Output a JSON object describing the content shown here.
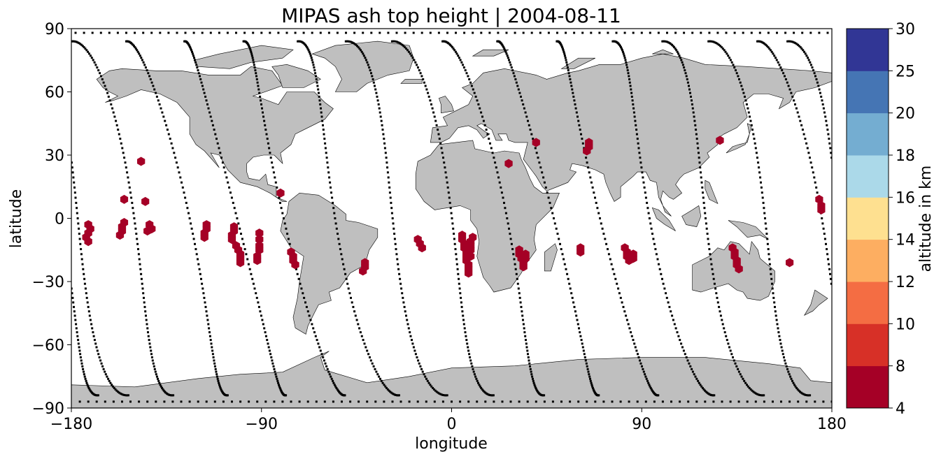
{
  "map": {
    "title": "MIPAS ash top height | 2004-08-11",
    "xlabel": "longitude",
    "ylabel": "latitude",
    "xticks": [
      {
        "value": -180,
        "label": "−180"
      },
      {
        "value": -90,
        "label": "−90"
      },
      {
        "value": 0,
        "label": "0"
      },
      {
        "value": 90,
        "label": "90"
      },
      {
        "value": 180,
        "label": "180"
      }
    ],
    "yticks": [
      {
        "value": 90,
        "label": "90"
      },
      {
        "value": 60,
        "label": "60"
      },
      {
        "value": 30,
        "label": "30"
      },
      {
        "value": 0,
        "label": "0"
      },
      {
        "value": -30,
        "label": "−30"
      },
      {
        "value": -60,
        "label": "−60"
      },
      {
        "value": -90,
        "label": "−90"
      }
    ],
    "xlim": [
      -180,
      180
    ],
    "ylim": [
      -90,
      90
    ],
    "land_color": "#bfbfbf",
    "orbit_color": "#000000",
    "ash_color": "#a50026"
  },
  "colorbar": {
    "label": "altitude in km",
    "levels": [
      4,
      8,
      10,
      12,
      14,
      16,
      18,
      20,
      25,
      30
    ],
    "tick_labels": [
      "4",
      "8",
      "10",
      "12",
      "14",
      "16",
      "18",
      "20",
      "25",
      "30"
    ],
    "colors": [
      "#a50026",
      "#d73027",
      "#f46d43",
      "#fdae61",
      "#fee090",
      "#ffffbf",
      "#e0f3f8",
      "#abd9e9",
      "#74add1",
      "#4575b4",
      "#313695"
    ]
  },
  "chart_data": {
    "type": "scatter",
    "title": "MIPAS ash top height | 2004-08-11",
    "xlabel": "longitude",
    "ylabel": "latitude",
    "xlim": [
      -180,
      180
    ],
    "ylim": [
      -90,
      90
    ],
    "orbit_nodes": [
      -177,
      -153,
      -127,
      -102,
      -77,
      -52,
      -27,
      -2,
      23,
      47,
      72,
      97,
      122,
      147,
      172
    ],
    "ash_detections": [
      {
        "lon": -172,
        "lat": -3
      },
      {
        "lon": -171,
        "lat": -5
      },
      {
        "lon": -172,
        "lat": -7
      },
      {
        "lon": -173,
        "lat": -9
      },
      {
        "lon": -172,
        "lat": -11
      },
      {
        "lon": -155,
        "lat": 9
      },
      {
        "lon": -155,
        "lat": -2
      },
      {
        "lon": -156,
        "lat": -4
      },
      {
        "lon": -156,
        "lat": -6
      },
      {
        "lon": -157,
        "lat": -8
      },
      {
        "lon": -147,
        "lat": 27
      },
      {
        "lon": -145,
        "lat": 8
      },
      {
        "lon": -143,
        "lat": -3
      },
      {
        "lon": -142,
        "lat": -5
      },
      {
        "lon": -144,
        "lat": -6
      },
      {
        "lon": -116,
        "lat": -3
      },
      {
        "lon": -116,
        "lat": -5
      },
      {
        "lon": -117,
        "lat": -7
      },
      {
        "lon": -117,
        "lat": -9
      },
      {
        "lon": -103,
        "lat": -4
      },
      {
        "lon": -103,
        "lat": -6
      },
      {
        "lon": -104,
        "lat": -8
      },
      {
        "lon": -104,
        "lat": -10
      },
      {
        "lon": -102,
        "lat": -13
      },
      {
        "lon": -101,
        "lat": -15
      },
      {
        "lon": -100,
        "lat": -17
      },
      {
        "lon": -100,
        "lat": -19
      },
      {
        "lon": -100,
        "lat": -21
      },
      {
        "lon": -91,
        "lat": -7
      },
      {
        "lon": -91,
        "lat": -10
      },
      {
        "lon": -91,
        "lat": -13
      },
      {
        "lon": -91,
        "lat": -15
      },
      {
        "lon": -92,
        "lat": -18
      },
      {
        "lon": -92,
        "lat": -20
      },
      {
        "lon": -81,
        "lat": 12
      },
      {
        "lon": -76,
        "lat": -16
      },
      {
        "lon": -75,
        "lat": -18
      },
      {
        "lon": -75,
        "lat": -20
      },
      {
        "lon": -74,
        "lat": -22
      },
      {
        "lon": -41,
        "lat": -21
      },
      {
        "lon": -41,
        "lat": -23
      },
      {
        "lon": -42,
        "lat": -25
      },
      {
        "lon": -16,
        "lat": -10
      },
      {
        "lon": -15,
        "lat": -12
      },
      {
        "lon": -14,
        "lat": -14
      },
      {
        "lon": 5,
        "lat": -8
      },
      {
        "lon": 5,
        "lat": -10
      },
      {
        "lon": 6,
        "lat": -12
      },
      {
        "lon": 6,
        "lat": -14
      },
      {
        "lon": 7,
        "lat": -16
      },
      {
        "lon": 7,
        "lat": -18
      },
      {
        "lon": 7,
        "lat": -20
      },
      {
        "lon": 8,
        "lat": -22
      },
      {
        "lon": 8,
        "lat": -24
      },
      {
        "lon": 8,
        "lat": -26
      },
      {
        "lon": 10,
        "lat": -9
      },
      {
        "lon": 9,
        "lat": -11
      },
      {
        "lon": 9,
        "lat": -13
      },
      {
        "lon": 9,
        "lat": -15
      },
      {
        "lon": 9,
        "lat": -18
      },
      {
        "lon": 27,
        "lat": 26
      },
      {
        "lon": 32,
        "lat": -15
      },
      {
        "lon": 32,
        "lat": -17
      },
      {
        "lon": 33,
        "lat": -19
      },
      {
        "lon": 35,
        "lat": -17
      },
      {
        "lon": 35,
        "lat": -19
      },
      {
        "lon": 34,
        "lat": -21
      },
      {
        "lon": 34,
        "lat": -23
      },
      {
        "lon": 40,
        "lat": 36
      },
      {
        "lon": 65,
        "lat": 36
      },
      {
        "lon": 65,
        "lat": 34
      },
      {
        "lon": 64,
        "lat": 32
      },
      {
        "lon": 61,
        "lat": -14
      },
      {
        "lon": 61,
        "lat": -16
      },
      {
        "lon": 82,
        "lat": -14
      },
      {
        "lon": 83,
        "lat": -16
      },
      {
        "lon": 83,
        "lat": -18
      },
      {
        "lon": 84,
        "lat": -20
      },
      {
        "lon": 86,
        "lat": -17
      },
      {
        "lon": 86,
        "lat": -19
      },
      {
        "lon": 127,
        "lat": 37
      },
      {
        "lon": 133,
        "lat": -14
      },
      {
        "lon": 134,
        "lat": -16
      },
      {
        "lon": 134,
        "lat": -18
      },
      {
        "lon": 135,
        "lat": -20
      },
      {
        "lon": 135,
        "lat": -22
      },
      {
        "lon": 136,
        "lat": -24
      },
      {
        "lon": 160,
        "lat": -21
      },
      {
        "lon": 174,
        "lat": 9
      },
      {
        "lon": 175,
        "lat": 6
      },
      {
        "lon": 175,
        "lat": 4
      }
    ],
    "ash_top_height_km": 6
  }
}
